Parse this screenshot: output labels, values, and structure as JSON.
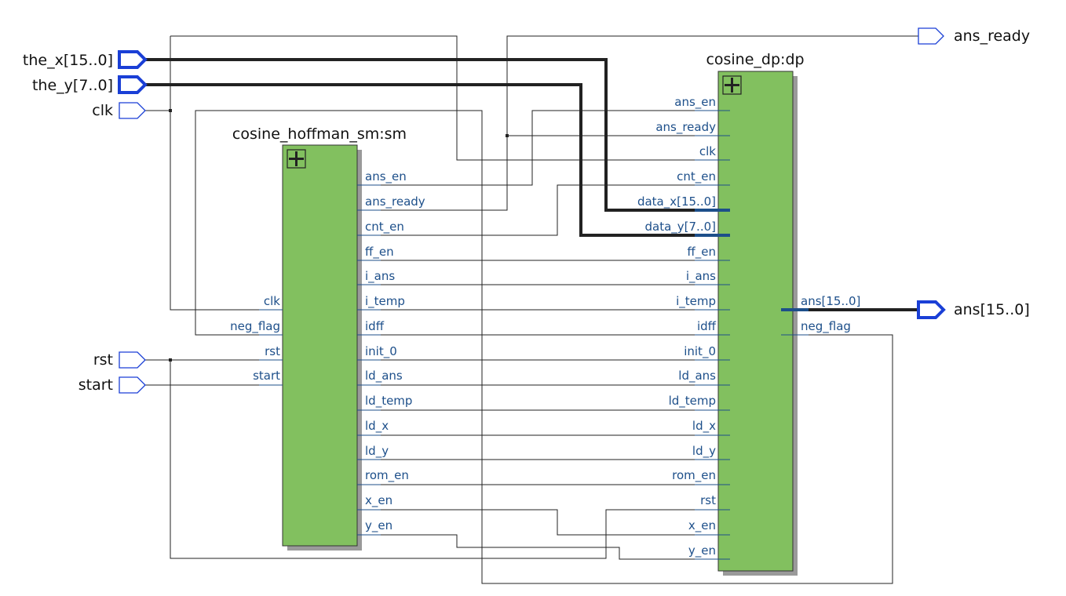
{
  "inputs": [
    {
      "label": "the_x[15..0]",
      "bus": true
    },
    {
      "label": "the_y[7..0]",
      "bus": true
    },
    {
      "label": "clk",
      "bus": false
    },
    {
      "label": "rst",
      "bus": false
    },
    {
      "label": "start",
      "bus": false
    }
  ],
  "outputs": [
    {
      "label": "ans_ready",
      "bus": false
    },
    {
      "label": "ans[15..0]",
      "bus": true
    }
  ],
  "sm": {
    "title": "cosine_hoffman_sm:sm",
    "left_ports": [
      "clk",
      "neg_flag",
      "rst",
      "start"
    ],
    "right_ports": [
      "ans_en",
      "ans_ready",
      "cnt_en",
      "ff_en",
      "i_ans",
      "i_temp",
      "idff",
      "init_0",
      "ld_ans",
      "ld_temp",
      "ld_x",
      "ld_y",
      "rom_en",
      "x_en",
      "y_en"
    ]
  },
  "dp": {
    "title": "cosine_dp:dp",
    "left_ports": [
      "ans_en",
      "ans_ready",
      "clk",
      "cnt_en",
      "data_x[15..0]",
      "data_y[7..0]",
      "ff_en",
      "i_ans",
      "i_temp",
      "idff",
      "init_0",
      "ld_ans",
      "ld_temp",
      "ld_x",
      "ld_y",
      "rom_en",
      "rst",
      "x_en",
      "y_en"
    ],
    "right_ports": [
      "ans[15..0]",
      "neg_flag"
    ]
  },
  "colors": {
    "block_fill": "#82c05f",
    "pin_text": "#1d4f8a",
    "io_outline": "#1a3fd6"
  }
}
